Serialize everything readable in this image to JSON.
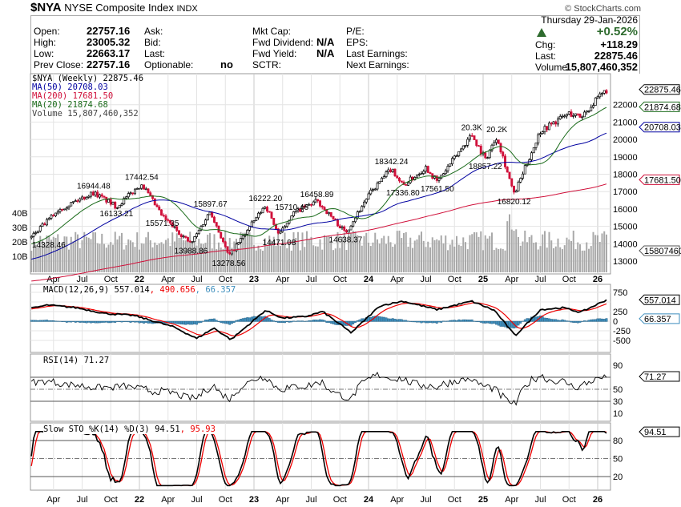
{
  "header": {
    "symbol": "$NYA",
    "name": "NYSE Composite Index",
    "exchange": "INDX",
    "copyright": "© StockCharts.com",
    "date": "Thursday  29-Jan-2026",
    "fields": [
      {
        "label": "Open:",
        "value": "22757.16"
      },
      {
        "label": "High:",
        "value": "23005.32"
      },
      {
        "label": "Low:",
        "value": "22663.17"
      },
      {
        "label": "Prev Close:",
        "value": "22757.16"
      },
      {
        "label": "Ask:",
        "value": ""
      },
      {
        "label": "Bid:",
        "value": ""
      },
      {
        "label": "Last:",
        "value": ""
      },
      {
        "label": "Optionable:",
        "value": "no"
      },
      {
        "label": "Mkt Cap:",
        "value": ""
      },
      {
        "label": "Fwd Dividend:",
        "value": "N/A"
      },
      {
        "label": "Fwd Yield:",
        "value": "N/A"
      },
      {
        "label": "SCTR:",
        "value": ""
      },
      {
        "label": "P/E:",
        "value": ""
      },
      {
        "label": "EPS:",
        "value": ""
      },
      {
        "label": "Last Earnings:",
        "value": ""
      },
      {
        "label": "Next Earnings:",
        "value": ""
      }
    ],
    "pct_change": "+0.52%",
    "chg_label": "Chg:",
    "chg": "+118.29",
    "last_label": "Last:",
    "last": "22875.46",
    "volume_label": "Volume:",
    "volume": "15,807,460,352",
    "up_color": "#2e6b2e"
  },
  "legend": {
    "price": "$NYA (Weekly) 22875.46",
    "ma50": "MA(50) 20708.03",
    "ma200": "MA(200) 17681.50",
    "ma20": "MA(20) 21874.68",
    "volume": "Volume 15,807,460,352",
    "macd_a": "MACD(12,26,9) 557.014",
    "macd_b": ", 490.656",
    "macd_c": ", 66.357",
    "rsi": "RSI(14) 71.27",
    "sto_a": "Slow STO %K(14) %D(3) 94.51",
    "sto_b": ", 95.93"
  },
  "chart_data": {
    "type": "candlestick",
    "title": "$NYA NYSE Composite Index (Weekly)",
    "x_ticks": [
      {
        "t": 2021.25,
        "label": "Apr"
      },
      {
        "t": 2021.5,
        "label": "Jul"
      },
      {
        "t": 2021.75,
        "label": "Oct"
      },
      {
        "t": 2022,
        "label": "22"
      },
      {
        "t": 2022.25,
        "label": "Apr"
      },
      {
        "t": 2022.5,
        "label": "Jul"
      },
      {
        "t": 2022.75,
        "label": "Oct"
      },
      {
        "t": 2023,
        "label": "23"
      },
      {
        "t": 2023.25,
        "label": "Apr"
      },
      {
        "t": 2023.5,
        "label": "Jul"
      },
      {
        "t": 2023.75,
        "label": "Oct"
      },
      {
        "t": 2024,
        "label": "24"
      },
      {
        "t": 2024.25,
        "label": "Apr"
      },
      {
        "t": 2024.5,
        "label": "Jul"
      },
      {
        "t": 2024.75,
        "label": "Oct"
      },
      {
        "t": 2025,
        "label": "25"
      },
      {
        "t": 2025.25,
        "label": "Apr"
      },
      {
        "t": 2025.5,
        "label": "Jul"
      },
      {
        "t": 2025.75,
        "label": "Oct"
      },
      {
        "t": 2026,
        "label": "26"
      }
    ],
    "price_ticks": [
      "13000",
      "14000",
      "15000",
      "16000",
      "17000",
      "18000",
      "19000",
      "20000",
      "21000",
      "22000"
    ],
    "volume_ticks": [
      "10B",
      "20B",
      "30B",
      "40B"
    ],
    "price_keypoints": [
      [
        2021.05,
        14328.46
      ],
      [
        2021.3,
        16000
      ],
      [
        2021.6,
        16944.48
      ],
      [
        2021.8,
        16133.21
      ],
      [
        2022.02,
        17442.54
      ],
      [
        2022.2,
        15571.35
      ],
      [
        2022.45,
        13988.86
      ],
      [
        2022.62,
        15897.67
      ],
      [
        2022.78,
        13278.56
      ],
      [
        2023.1,
        16222.2
      ],
      [
        2023.22,
        14471.08
      ],
      [
        2023.33,
        15710.46
      ],
      [
        2023.55,
        16458.89
      ],
      [
        2023.8,
        14638.37
      ],
      [
        2024.0,
        16800
      ],
      [
        2024.2,
        18342.24
      ],
      [
        2024.3,
        17336.8
      ],
      [
        2024.5,
        18400
      ],
      [
        2024.6,
        17561.5
      ],
      [
        2024.9,
        20300
      ],
      [
        2025.02,
        18857.22
      ],
      [
        2025.12,
        20200
      ],
      [
        2025.27,
        16820.12
      ],
      [
        2025.5,
        20500
      ],
      [
        2025.75,
        21500
      ],
      [
        2025.85,
        21300
      ],
      [
        2026.08,
        22875.46
      ]
    ],
    "annotations": [
      [
        "14328.46",
        2021.05,
        14328.46,
        "below"
      ],
      [
        "16944.48",
        2021.6,
        16944.48,
        "above"
      ],
      [
        "16133.21",
        2021.8,
        16133.21,
        "below"
      ],
      [
        "17442.54",
        2022.02,
        17442.54,
        "above"
      ],
      [
        "15571.35",
        2022.2,
        15571.35,
        "below"
      ],
      [
        "13988.86",
        2022.45,
        13988.86,
        "below"
      ],
      [
        "15897.67",
        2022.62,
        15897.67,
        "above"
      ],
      [
        "13278.56",
        2022.78,
        13278.56,
        "below"
      ],
      [
        "16222.20",
        2023.1,
        16222.2,
        "above"
      ],
      [
        "14471.08",
        2023.22,
        14471.08,
        "below"
      ],
      [
        "15710.46",
        2023.33,
        15710.46,
        "above"
      ],
      [
        "16458.89",
        2023.55,
        16458.89,
        "above"
      ],
      [
        "14638.37",
        2023.8,
        14638.37,
        "below"
      ],
      [
        "18342.24",
        2024.2,
        18342.24,
        "above"
      ],
      [
        "17336.80",
        2024.3,
        17336.8,
        "below"
      ],
      [
        "17561.50",
        2024.6,
        17561.5,
        "below"
      ],
      [
        "20.3K",
        2024.9,
        20300,
        "above"
      ],
      [
        "18857.22",
        2025.02,
        18857.22,
        "below"
      ],
      [
        "20.2K",
        2025.12,
        20200,
        "above"
      ],
      [
        "16820.12",
        2025.27,
        16820.12,
        "below"
      ]
    ],
    "last_values": {
      "price": "22875.46",
      "ma20": "21874.68",
      "ma50": "20708.03",
      "ma200": "17681.50",
      "volume": "15807460",
      "macd": "557.014",
      "signal": "490.656",
      "hist": "66.357",
      "rsi": "71.27",
      "sto": "94.51"
    },
    "macd_keypoints": [
      [
        2021.0,
        300
      ],
      [
        2021.2,
        420
      ],
      [
        2021.45,
        350
      ],
      [
        2021.7,
        200
      ],
      [
        2021.95,
        150
      ],
      [
        2022.3,
        -150
      ],
      [
        2022.5,
        -450
      ],
      [
        2022.65,
        -180
      ],
      [
        2022.8,
        -480
      ],
      [
        2023.1,
        280
      ],
      [
        2023.25,
        80
      ],
      [
        2023.45,
        120
      ],
      [
        2023.6,
        250
      ],
      [
        2023.85,
        -300
      ],
      [
        2024.1,
        400
      ],
      [
        2024.3,
        520
      ],
      [
        2024.6,
        300
      ],
      [
        2024.9,
        520
      ],
      [
        2025.1,
        280
      ],
      [
        2025.28,
        -380
      ],
      [
        2025.5,
        300
      ],
      [
        2025.7,
        350
      ],
      [
        2025.85,
        230
      ],
      [
        2026.08,
        557
      ]
    ],
    "macd_ticks": [
      "750",
      "250",
      "0",
      "-250",
      "-500"
    ],
    "rsi_ticks": [
      "90",
      "50",
      "30",
      "10"
    ],
    "sto_ticks": [
      "80",
      "50",
      "20"
    ],
    "colors": {
      "ma50": "#0000a0",
      "ma200": "#d0103a",
      "ma20": "#1a6b1a",
      "hist": "#3d8ebd",
      "up": "#000000",
      "down": "#d0103a",
      "volume": "#a9a9a9"
    }
  }
}
